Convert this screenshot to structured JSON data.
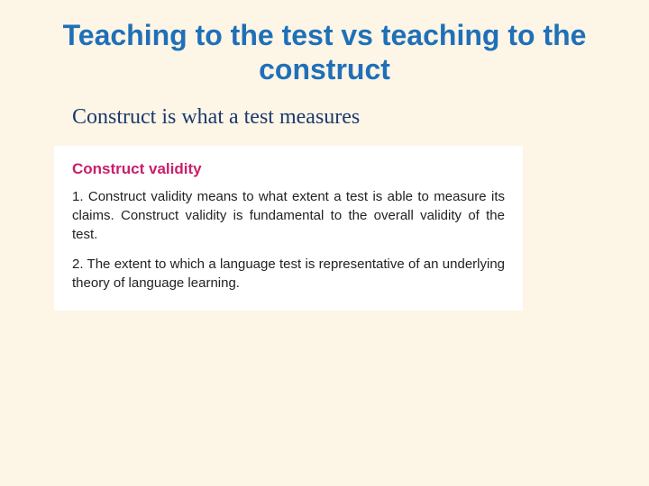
{
  "slide": {
    "title": "Teaching to the test vs teaching to the construct",
    "subtitle": "Construct is what a test measures",
    "definition": {
      "heading": "Construct validity",
      "items": [
        "1. Construct validity means to what extent a test is able to measure its claims. Construct validity is fundamental to the overall validity of the test.",
        "2. The extent to which a language test is representative of an underlying theory of language learning."
      ]
    }
  },
  "styling": {
    "background_color": "#fdf5e6",
    "title_color": "#1f70b8",
    "title_fontsize": 32,
    "subtitle_color": "#1d3a6d",
    "subtitle_fontsize": 24,
    "def_heading_color": "#c91e6b",
    "def_heading_fontsize": 17,
    "def_text_color": "#222222",
    "def_text_fontsize": 15,
    "box_background": "#ffffff"
  }
}
